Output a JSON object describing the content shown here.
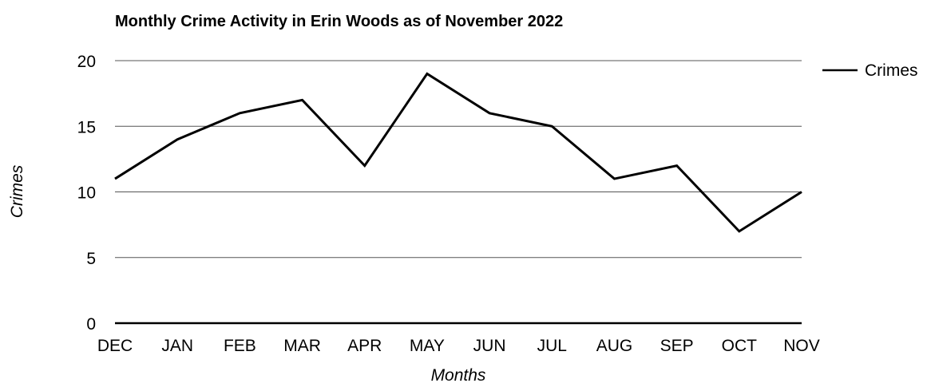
{
  "chart_data": {
    "type": "line",
    "title": "Monthly Crime Activity in Erin Woods as of November 2022",
    "xlabel": "Months",
    "ylabel": "Crimes",
    "categories": [
      "DEC",
      "JAN",
      "FEB",
      "MAR",
      "APR",
      "MAY",
      "JUN",
      "JUL",
      "AUG",
      "SEP",
      "OCT",
      "NOV"
    ],
    "series": [
      {
        "name": "Crimes",
        "values": [
          11,
          14,
          16,
          17,
          12,
          19,
          16,
          15,
          11,
          12,
          7,
          10
        ],
        "color": "#000000"
      }
    ],
    "ylim": [
      0,
      20
    ],
    "yticks": [
      0,
      5,
      10,
      15,
      20
    ],
    "grid": true,
    "legend_position": "right"
  }
}
